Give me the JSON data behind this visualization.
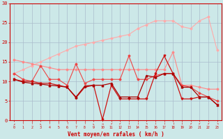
{
  "x": [
    0,
    1,
    2,
    3,
    4,
    5,
    6,
    7,
    8,
    9,
    10,
    11,
    12,
    13,
    14,
    15,
    16,
    17,
    18,
    19,
    20,
    21,
    22,
    23
  ],
  "line1": [
    10.5,
    9.8,
    9.5,
    9.3,
    9.0,
    8.8,
    8.5,
    6.0,
    8.8,
    9.0,
    9.0,
    9.5,
    6.0,
    6.0,
    6.0,
    11.5,
    11.0,
    12.0,
    12.0,
    8.5,
    8.5,
    6.0,
    6.0,
    4.0
  ],
  "line2": [
    10.5,
    10.0,
    10.0,
    9.5,
    9.5,
    9.0,
    8.5,
    5.8,
    8.5,
    9.0,
    0.2,
    9.0,
    5.5,
    5.5,
    5.5,
    5.5,
    12.0,
    16.5,
    12.0,
    5.5,
    5.5,
    6.0,
    6.0,
    4.0
  ],
  "line3": [
    12.0,
    10.5,
    10.0,
    14.0,
    10.5,
    10.5,
    9.0,
    14.5,
    9.5,
    10.5,
    10.5,
    10.5,
    10.5,
    16.5,
    10.5,
    10.5,
    11.5,
    12.0,
    12.0,
    9.0,
    8.5,
    7.0,
    6.0,
    5.0
  ],
  "line4": [
    15.5,
    15.0,
    14.5,
    14.0,
    13.5,
    13.0,
    13.0,
    13.0,
    13.0,
    13.0,
    13.0,
    13.0,
    13.0,
    13.0,
    13.0,
    13.0,
    13.0,
    13.0,
    17.5,
    9.0,
    9.0,
    8.5,
    8.0,
    8.0
  ],
  "line5": [
    12.0,
    13.0,
    14.0,
    15.0,
    16.0,
    17.0,
    18.0,
    19.0,
    19.5,
    20.0,
    20.5,
    21.0,
    21.5,
    22.0,
    23.5,
    24.5,
    25.5,
    25.5,
    25.5,
    24.0,
    23.5,
    25.5,
    26.5,
    18.0
  ],
  "bg_color": "#cce8e8",
  "grid_color": "#aabccc",
  "line1_color": "#aa0000",
  "line2_color": "#cc1111",
  "line3_color": "#ee4444",
  "line4_color": "#ff8888",
  "line5_color": "#ffaaaa",
  "xlabel": "Vent moyen/en rafales ( km/h )",
  "ylim": [
    0,
    30
  ],
  "xlim": [
    0,
    23
  ],
  "yticks": [
    0,
    5,
    10,
    15,
    20,
    25,
    30
  ],
  "xticks": [
    0,
    1,
    2,
    3,
    4,
    5,
    6,
    7,
    8,
    9,
    10,
    11,
    12,
    13,
    14,
    15,
    16,
    17,
    18,
    19,
    20,
    21,
    22,
    23
  ],
  "wind_arrows": [
    "↗",
    "↑",
    "↑",
    "↖",
    "↑",
    "↑",
    "↑",
    "↑",
    "↑",
    "↖",
    "→",
    "↙",
    "↙",
    "↓",
    "↓",
    "↘",
    "↓",
    "↓",
    "↓",
    "↓",
    "↙",
    "↙",
    "↙",
    "↘"
  ]
}
